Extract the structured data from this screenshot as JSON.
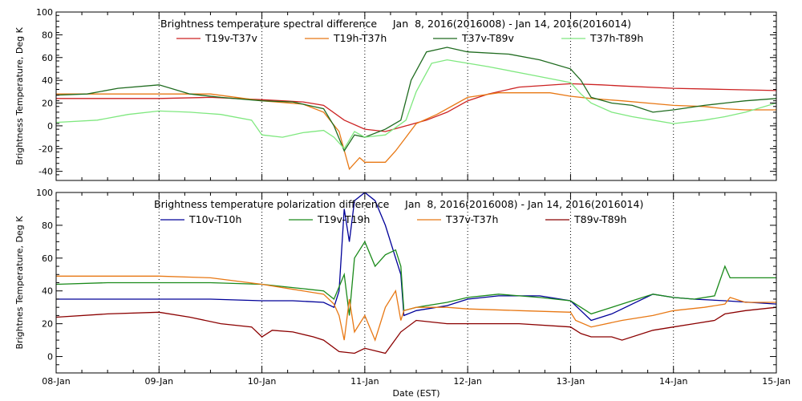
{
  "figure": {
    "xlabel": "Date (EST)",
    "x_ticks": [
      {
        "x": 0,
        "label": "08-Jan"
      },
      {
        "x": 1,
        "label": "09-Jan"
      },
      {
        "x": 2,
        "label": "10-Jan"
      },
      {
        "x": 3,
        "label": "11-Jan"
      },
      {
        "x": 4,
        "label": "12-Jan"
      },
      {
        "x": 5,
        "label": "13-Jan"
      },
      {
        "x": 6,
        "label": "14-Jan"
      },
      {
        "x": 7,
        "label": "15-Jan"
      }
    ],
    "xlim": [
      0,
      7
    ]
  },
  "chart_data": [
    {
      "type": "line",
      "title": "Brightness temperature spectral difference     Jan  8, 2016(2016008) - Jan 14, 2016(2016014)",
      "ylabel": "Brightness Temperature, Deg K",
      "ylim": [
        -48,
        100
      ],
      "y_ticks": [
        -40,
        -20,
        0,
        20,
        40,
        60,
        80,
        100
      ],
      "grid": "dotted vertical at day boundaries",
      "legend": "top, single row",
      "series": [
        {
          "name": "T19v-T37v",
          "color": "#cc2222",
          "points": [
            [
              0,
              24
            ],
            [
              0.5,
              24
            ],
            [
              1,
              24
            ],
            [
              1.5,
              25
            ],
            [
              2,
              23
            ],
            [
              2.2,
              22
            ],
            [
              2.4,
              21
            ],
            [
              2.6,
              18
            ],
            [
              2.8,
              5
            ],
            [
              3,
              -3
            ],
            [
              3.2,
              -5
            ],
            [
              3.4,
              0
            ],
            [
              3.6,
              5
            ],
            [
              3.8,
              12
            ],
            [
              4,
              22
            ],
            [
              4.2,
              28
            ],
            [
              4.5,
              34
            ],
            [
              5,
              37
            ],
            [
              5.3,
              36
            ],
            [
              5.5,
              35
            ],
            [
              6,
              33
            ],
            [
              6.5,
              32
            ],
            [
              7,
              31
            ]
          ]
        },
        {
          "name": "T19h-T37h",
          "color": "#e87814",
          "points": [
            [
              0,
              28
            ],
            [
              0.5,
              28
            ],
            [
              1,
              28
            ],
            [
              1.5,
              28
            ],
            [
              2,
              22
            ],
            [
              2.4,
              19
            ],
            [
              2.6,
              12
            ],
            [
              2.75,
              -5
            ],
            [
              2.85,
              -38
            ],
            [
              2.95,
              -28
            ],
            [
              3,
              -32
            ],
            [
              3.2,
              -32
            ],
            [
              3.3,
              -22
            ],
            [
              3.4,
              -10
            ],
            [
              3.5,
              2
            ],
            [
              3.7,
              10
            ],
            [
              3.9,
              20
            ],
            [
              4,
              25
            ],
            [
              4.3,
              29
            ],
            [
              4.8,
              29
            ],
            [
              5,
              26
            ],
            [
              5.2,
              24
            ],
            [
              5.5,
              22
            ],
            [
              6,
              18
            ],
            [
              6.3,
              17
            ],
            [
              6.5,
              15
            ],
            [
              6.7,
              14
            ],
            [
              7,
              14
            ]
          ]
        },
        {
          "name": "T37v-T89v",
          "color": "#1f6b1f",
          "points": [
            [
              0,
              27
            ],
            [
              0.3,
              28
            ],
            [
              0.6,
              33
            ],
            [
              1,
              36
            ],
            [
              1.3,
              28
            ],
            [
              1.6,
              25
            ],
            [
              2,
              22
            ],
            [
              2.3,
              21
            ],
            [
              2.6,
              15
            ],
            [
              2.7,
              0
            ],
            [
              2.8,
              -22
            ],
            [
              2.9,
              -8
            ],
            [
              3,
              -10
            ],
            [
              3.2,
              -3
            ],
            [
              3.35,
              5
            ],
            [
              3.45,
              40
            ],
            [
              3.6,
              65
            ],
            [
              3.8,
              69
            ],
            [
              4,
              65
            ],
            [
              4.4,
              63
            ],
            [
              4.7,
              58
            ],
            [
              5,
              50
            ],
            [
              5.1,
              40
            ],
            [
              5.2,
              25
            ],
            [
              5.4,
              20
            ],
            [
              5.6,
              18
            ],
            [
              5.8,
              12
            ],
            [
              6,
              14
            ],
            [
              6.3,
              18
            ],
            [
              6.5,
              20
            ],
            [
              6.7,
              22
            ],
            [
              7,
              24
            ]
          ]
        },
        {
          "name": "T37h-T89h",
          "color": "#7fe87f",
          "points": [
            [
              0,
              3
            ],
            [
              0.4,
              5
            ],
            [
              0.7,
              10
            ],
            [
              1,
              13
            ],
            [
              1.3,
              12
            ],
            [
              1.6,
              10
            ],
            [
              1.9,
              5
            ],
            [
              2,
              -8
            ],
            [
              2.2,
              -10
            ],
            [
              2.4,
              -6
            ],
            [
              2.6,
              -4
            ],
            [
              2.7,
              -10
            ],
            [
              2.8,
              -20
            ],
            [
              2.9,
              -5
            ],
            [
              3,
              -10
            ],
            [
              3.2,
              -8
            ],
            [
              3.4,
              5
            ],
            [
              3.5,
              30
            ],
            [
              3.65,
              55
            ],
            [
              3.8,
              58
            ],
            [
              4.2,
              52
            ],
            [
              4.6,
              45
            ],
            [
              5,
              38
            ],
            [
              5.1,
              28
            ],
            [
              5.2,
              20
            ],
            [
              5.4,
              12
            ],
            [
              5.6,
              8
            ],
            [
              5.8,
              5
            ],
            [
              6,
              2
            ],
            [
              6.3,
              5
            ],
            [
              6.5,
              8
            ],
            [
              6.7,
              12
            ],
            [
              7,
              20
            ]
          ]
        }
      ]
    },
    {
      "type": "line",
      "title": "Brightness temperature polarization difference     Jan  8, 2016(2016008) - Jan 14, 2016(2016014)",
      "ylabel": "Brightnes Temperature, Deg K",
      "ylim": [
        -10,
        100
      ],
      "y_ticks": [
        0,
        20,
        40,
        60,
        80,
        100
      ],
      "grid": "dotted vertical at day boundaries",
      "legend": "top, single row",
      "series": [
        {
          "name": "T10v-T10h",
          "color": "#000099",
          "points": [
            [
              0,
              35
            ],
            [
              0.5,
              35
            ],
            [
              1,
              35
            ],
            [
              1.5,
              35
            ],
            [
              2,
              34
            ],
            [
              2.3,
              34
            ],
            [
              2.6,
              33
            ],
            [
              2.7,
              30
            ],
            [
              2.75,
              40
            ],
            [
              2.8,
              90
            ],
            [
              2.85,
              70
            ],
            [
              2.9,
              95
            ],
            [
              3,
              100
            ],
            [
              3.1,
              95
            ],
            [
              3.2,
              80
            ],
            [
              3.3,
              60
            ],
            [
              3.35,
              50
            ],
            [
              3.38,
              25
            ],
            [
              3.5,
              28
            ],
            [
              3.8,
              31
            ],
            [
              4,
              35
            ],
            [
              4.3,
              37
            ],
            [
              4.7,
              37
            ],
            [
              5,
              34
            ],
            [
              5.1,
              28
            ],
            [
              5.2,
              22
            ],
            [
              5.4,
              26
            ],
            [
              5.6,
              32
            ],
            [
              5.8,
              38
            ],
            [
              6,
              36
            ],
            [
              6.2,
              35
            ],
            [
              6.5,
              34
            ],
            [
              7,
              32
            ]
          ]
        },
        {
          "name": "T19v-T19h",
          "color": "#1a8a1a",
          "points": [
            [
              0,
              44
            ],
            [
              0.5,
              45
            ],
            [
              1,
              45
            ],
            [
              1.5,
              45
            ],
            [
              2,
              44
            ],
            [
              2.3,
              42
            ],
            [
              2.6,
              40
            ],
            [
              2.7,
              35
            ],
            [
              2.8,
              50
            ],
            [
              2.85,
              25
            ],
            [
              2.9,
              60
            ],
            [
              3,
              70
            ],
            [
              3.1,
              55
            ],
            [
              3.2,
              62
            ],
            [
              3.3,
              65
            ],
            [
              3.35,
              55
            ],
            [
              3.38,
              28
            ],
            [
              3.5,
              30
            ],
            [
              3.8,
              33
            ],
            [
              4,
              36
            ],
            [
              4.3,
              38
            ],
            [
              4.7,
              36
            ],
            [
              5,
              34
            ],
            [
              5.1,
              30
            ],
            [
              5.2,
              26
            ],
            [
              5.4,
              30
            ],
            [
              5.6,
              34
            ],
            [
              5.8,
              38
            ],
            [
              6,
              36
            ],
            [
              6.2,
              35
            ],
            [
              6.4,
              37
            ],
            [
              6.5,
              55
            ],
            [
              6.55,
              48
            ],
            [
              6.7,
              48
            ],
            [
              7,
              48
            ]
          ]
        },
        {
          "name": "T37v-T37h",
          "color": "#e87814",
          "points": [
            [
              0,
              49
            ],
            [
              0.5,
              49
            ],
            [
              1,
              49
            ],
            [
              1.5,
              48
            ],
            [
              2,
              44
            ],
            [
              2.3,
              41
            ],
            [
              2.6,
              38
            ],
            [
              2.7,
              32
            ],
            [
              2.75,
              25
            ],
            [
              2.8,
              10
            ],
            [
              2.85,
              35
            ],
            [
              2.9,
              15
            ],
            [
              3,
              25
            ],
            [
              3.1,
              10
            ],
            [
              3.2,
              30
            ],
            [
              3.3,
              40
            ],
            [
              3.35,
              22
            ],
            [
              3.38,
              28
            ],
            [
              3.5,
              30
            ],
            [
              3.8,
              30
            ],
            [
              4,
              29
            ],
            [
              4.5,
              28
            ],
            [
              5,
              27
            ],
            [
              5.05,
              22
            ],
            [
              5.2,
              18
            ],
            [
              5.5,
              22
            ],
            [
              5.8,
              25
            ],
            [
              6,
              28
            ],
            [
              6.3,
              30
            ],
            [
              6.5,
              32
            ],
            [
              6.55,
              36
            ],
            [
              6.7,
              33
            ],
            [
              7,
              33
            ]
          ]
        },
        {
          "name": "T89v-T89h",
          "color": "#8b0000",
          "points": [
            [
              0,
              24
            ],
            [
              0.5,
              26
            ],
            [
              1,
              27
            ],
            [
              1.3,
              24
            ],
            [
              1.6,
              20
            ],
            [
              1.9,
              18
            ],
            [
              2,
              12
            ],
            [
              2.1,
              16
            ],
            [
              2.3,
              15
            ],
            [
              2.5,
              12
            ],
            [
              2.6,
              10
            ],
            [
              2.75,
              3
            ],
            [
              2.9,
              2
            ],
            [
              3,
              5
            ],
            [
              3.2,
              2
            ],
            [
              3.35,
              15
            ],
            [
              3.5,
              22
            ],
            [
              3.8,
              20
            ],
            [
              4,
              20
            ],
            [
              4.5,
              20
            ],
            [
              5,
              18
            ],
            [
              5.1,
              14
            ],
            [
              5.2,
              12
            ],
            [
              5.4,
              12
            ],
            [
              5.5,
              10
            ],
            [
              5.8,
              16
            ],
            [
              6,
              18
            ],
            [
              6.2,
              20
            ],
            [
              6.4,
              22
            ],
            [
              6.5,
              26
            ],
            [
              6.7,
              28
            ],
            [
              7,
              30
            ]
          ]
        }
      ]
    }
  ]
}
